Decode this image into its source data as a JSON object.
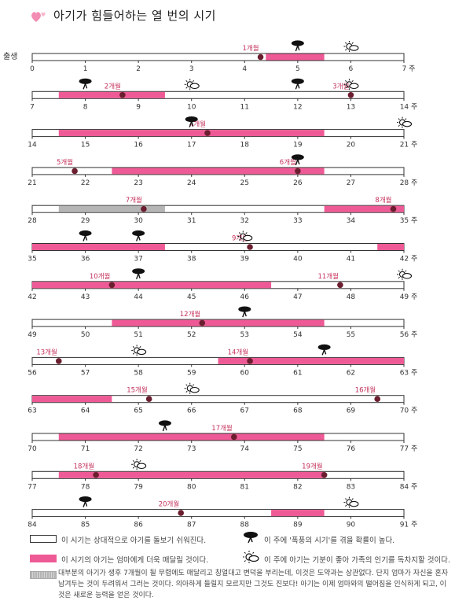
{
  "title": "아기가 힘들어하는 열 번의 시기",
  "start_label": "출생",
  "week_unit": "주",
  "colors": {
    "pink": "#ee5a95",
    "gray": "#b5b5b5",
    "dot": "#6b1e2f",
    "month_label": "#c4305a",
    "line": "#333333"
  },
  "rows": [
    {
      "start": 0,
      "segments": [
        {
          "type": "pink",
          "from": 4.4,
          "to": 5.5
        }
      ],
      "month_markers": [
        {
          "label": "1개월",
          "week": 4.3
        }
      ],
      "storm_weeks": [
        5
      ],
      "sun_weeks": [
        6
      ]
    },
    {
      "start": 7,
      "segments": [
        {
          "type": "pink",
          "from": 7.5,
          "to": 9.5
        }
      ],
      "month_markers": [
        {
          "label": "2개월",
          "week": 8.7
        },
        {
          "label": "3개월",
          "week": 13
        }
      ],
      "storm_weeks": [
        8,
        12
      ],
      "sun_weeks": [
        10,
        13
      ]
    },
    {
      "start": 14,
      "segments": [
        {
          "type": "pink",
          "from": 14.5,
          "to": 19.5
        }
      ],
      "month_markers": [
        {
          "label": "4개월",
          "week": 17.3
        }
      ],
      "storm_weeks": [
        17
      ],
      "sun_weeks": [
        21
      ]
    },
    {
      "start": 21,
      "segments": [
        {
          "type": "pink",
          "from": 22.5,
          "to": 26.5
        }
      ],
      "month_markers": [
        {
          "label": "5개월",
          "week": 21.8
        },
        {
          "label": "6개월",
          "week": 26
        }
      ],
      "storm_weeks": [
        26
      ],
      "sun_weeks": []
    },
    {
      "start": 28,
      "segments": [
        {
          "type": "gray",
          "from": 28.5,
          "to": 30.5
        },
        {
          "type": "pink",
          "from": 33.5,
          "to": 35
        }
      ],
      "month_markers": [
        {
          "label": "7개월",
          "week": 30.1
        },
        {
          "label": "8개월",
          "week": 34.8
        }
      ],
      "storm_weeks": [],
      "sun_weeks": []
    },
    {
      "start": 35,
      "segments": [
        {
          "type": "pink",
          "from": 35,
          "to": 37.5
        },
        {
          "type": "pink",
          "from": 41.5,
          "to": 42
        }
      ],
      "month_markers": [
        {
          "label": "9개월",
          "week": 39.1
        }
      ],
      "storm_weeks": [
        36,
        37
      ],
      "sun_weeks": [
        39
      ]
    },
    {
      "start": 42,
      "segments": [
        {
          "type": "pink",
          "from": 42,
          "to": 46.5
        }
      ],
      "month_markers": [
        {
          "label": "10개월",
          "week": 43.5
        },
        {
          "label": "11개월",
          "week": 47.8
        }
      ],
      "storm_weeks": [
        44
      ],
      "sun_weeks": [
        49
      ]
    },
    {
      "start": 49,
      "segments": [
        {
          "type": "pink",
          "from": 50.5,
          "to": 54.5
        }
      ],
      "month_markers": [
        {
          "label": "12개월",
          "week": 52.2
        }
      ],
      "storm_weeks": [
        53
      ],
      "sun_weeks": []
    },
    {
      "start": 56,
      "segments": [
        {
          "type": "pink",
          "from": 59.5,
          "to": 63
        }
      ],
      "month_markers": [
        {
          "label": "13개월",
          "week": 56.5
        },
        {
          "label": "14개월",
          "week": 60.1
        }
      ],
      "storm_weeks": [
        61.5
      ],
      "sun_weeks": [
        58
      ]
    },
    {
      "start": 63,
      "segments": [
        {
          "type": "pink",
          "from": 63,
          "to": 64.5
        }
      ],
      "month_markers": [
        {
          "label": "15개월",
          "week": 65.2
        },
        {
          "label": "16개월",
          "week": 69.5
        }
      ],
      "storm_weeks": [],
      "sun_weeks": [
        66
      ]
    },
    {
      "start": 70,
      "segments": [
        {
          "type": "pink",
          "from": 70.5,
          "to": 75.5
        }
      ],
      "month_markers": [
        {
          "label": "17개월",
          "week": 73.8
        }
      ],
      "storm_weeks": [
        72.5
      ],
      "sun_weeks": []
    },
    {
      "start": 77,
      "segments": [
        {
          "type": "pink",
          "from": 77.5,
          "to": 82.5
        }
      ],
      "month_markers": [
        {
          "label": "18개월",
          "week": 78.2
        },
        {
          "label": "19개월",
          "week": 82.5
        }
      ],
      "storm_weeks": [],
      "sun_weeks": [
        79
      ]
    },
    {
      "start": 84,
      "segments": [
        {
          "type": "pink",
          "from": 88.5,
          "to": 89.5
        }
      ],
      "month_markers": [
        {
          "label": "20개월",
          "week": 86.8
        }
      ],
      "storm_weeks": [
        85
      ],
      "sun_weeks": [
        90
      ]
    }
  ],
  "legend": {
    "easy": "이 시기는 상대적으로 아기를 돌보기 쉬워진다.",
    "clingy": "이 시기의 아기는 엄마에게 더욱 매달릴 것이다.",
    "storm": "이 주에 '폭풍의 시기'를 겪을 확률이 높다.",
    "sunny": "이 주에 아기는 기분이 좋아 가족의 인기를 독차지할 것이다.",
    "gray_paragraph": "대부분의 아기가 생후 7개월이 될 무렵에도 매달리고 칭얼대고 변덕을 부리는데, 이것은 도약과는 상관없다. 단지 엄마가 자신을 혼자 남겨두는 것이 두려워서 그러는 것이다. 의아하게 들릴지 모르지만 그것도 진보다! 아기는 이제 엄마와의 떨어짐을 인식하게 되고, 이것은 새로운 능력을 얻은 것이다."
  }
}
